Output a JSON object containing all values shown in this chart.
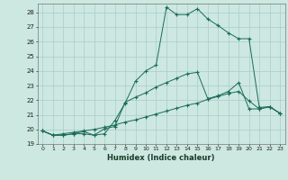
{
  "xlabel": "Humidex (Indice chaleur)",
  "xlim": [
    -0.5,
    23.5
  ],
  "ylim": [
    19,
    28.6
  ],
  "xticks": [
    0,
    1,
    2,
    3,
    4,
    5,
    6,
    7,
    8,
    9,
    10,
    11,
    12,
    13,
    14,
    15,
    16,
    17,
    18,
    19,
    20,
    21,
    22,
    23
  ],
  "yticks": [
    19,
    20,
    21,
    22,
    23,
    24,
    25,
    26,
    27,
    28
  ],
  "bg_color": "#cce8e0",
  "line_color": "#1a6b5a",
  "grid_color": "#aacccc",
  "line1_x": [
    0,
    1,
    2,
    3,
    4,
    5,
    6,
    7,
    8,
    9,
    10,
    11,
    12,
    13,
    14,
    15,
    16,
    17,
    18,
    19,
    20,
    21,
    22,
    23
  ],
  "line1_y": [
    19.9,
    19.6,
    19.6,
    19.7,
    19.7,
    19.6,
    19.7,
    20.6,
    21.8,
    23.3,
    24.0,
    24.4,
    28.35,
    27.85,
    27.85,
    28.25,
    27.55,
    27.1,
    26.6,
    26.2,
    26.2,
    21.5,
    21.55,
    21.1
  ],
  "line2_x": [
    0,
    1,
    2,
    3,
    4,
    5,
    6,
    7,
    8,
    9,
    10,
    11,
    12,
    13,
    14,
    15,
    16,
    17,
    18,
    19,
    20,
    21,
    22,
    23
  ],
  "line2_y": [
    19.9,
    19.6,
    19.6,
    19.7,
    19.85,
    19.6,
    20.05,
    20.2,
    21.85,
    22.2,
    22.5,
    22.9,
    23.2,
    23.5,
    23.8,
    23.9,
    22.1,
    22.3,
    22.6,
    23.2,
    21.4,
    21.4,
    21.55,
    21.1
  ],
  "line3_x": [
    0,
    1,
    2,
    3,
    4,
    5,
    6,
    7,
    8,
    9,
    10,
    11,
    12,
    13,
    14,
    15,
    16,
    17,
    18,
    19,
    20,
    21,
    22,
    23
  ],
  "line3_y": [
    19.9,
    19.6,
    19.7,
    19.8,
    19.9,
    20.0,
    20.15,
    20.3,
    20.5,
    20.65,
    20.85,
    21.05,
    21.25,
    21.45,
    21.65,
    21.8,
    22.05,
    22.25,
    22.45,
    22.6,
    21.95,
    21.4,
    21.55,
    21.1
  ]
}
